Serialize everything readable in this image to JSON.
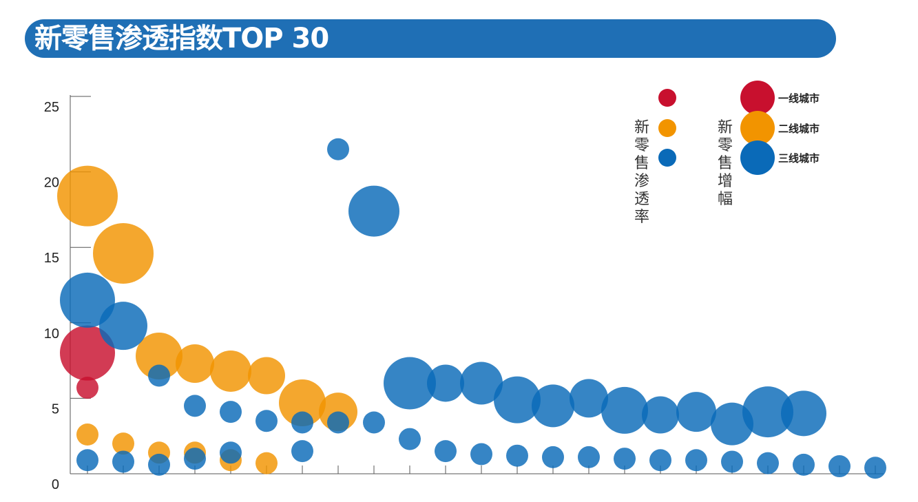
{
  "header": {
    "title": "新零售渗透指数TOP 30"
  },
  "chart_data": {
    "type": "scatter",
    "title": "新零售渗透指数TOP 30",
    "ylim": [
      0,
      25
    ],
    "yticks": [
      0,
      5,
      10,
      15,
      20,
      25
    ],
    "x_count": 23,
    "grid": false,
    "legend": {
      "placement": "top-right",
      "penetration_label": "新零售渗透率",
      "growth_label": "新零售增幅",
      "tiers": [
        {
          "name": "一线城市",
          "color": "#c8102e"
        },
        {
          "name": "二线城市",
          "color": "#f29400"
        },
        {
          "name": "三线城市",
          "color": "#0a6ab8"
        }
      ]
    },
    "series": [
      {
        "name": "一线城市",
        "color": "#c8102e",
        "metric": "新零售增幅",
        "points": [
          {
            "x": 1,
            "y": 8.0,
            "size": 40
          }
        ]
      },
      {
        "name": "一线城市",
        "color": "#c8102e",
        "metric": "新零售渗透率",
        "points": [
          {
            "x": 1,
            "y": 5.7,
            "size": 16
          }
        ]
      },
      {
        "name": "二线城市",
        "color": "#f29400",
        "metric": "新零售增幅",
        "points": [
          {
            "x": 1,
            "y": 18.4,
            "size": 44
          },
          {
            "x": 2,
            "y": 14.6,
            "size": 44
          },
          {
            "x": 3,
            "y": 7.8,
            "size": 34
          },
          {
            "x": 4,
            "y": 7.3,
            "size": 28
          },
          {
            "x": 5,
            "y": 6.8,
            "size": 30
          },
          {
            "x": 6,
            "y": 6.5,
            "size": 27
          },
          {
            "x": 7,
            "y": 4.7,
            "size": 34
          },
          {
            "x": 8,
            "y": 4.1,
            "size": 28
          }
        ]
      },
      {
        "name": "二线城市",
        "color": "#f29400",
        "metric": "新零售渗透率",
        "points": [
          {
            "x": 1,
            "y": 2.6,
            "size": 16
          },
          {
            "x": 2,
            "y": 2.0,
            "size": 16
          },
          {
            "x": 3,
            "y": 1.4,
            "size": 16
          },
          {
            "x": 4,
            "y": 1.4,
            "size": 16
          },
          {
            "x": 5,
            "y": 0.9,
            "size": 16
          },
          {
            "x": 6,
            "y": 0.7,
            "size": 16
          }
        ]
      },
      {
        "name": "三线城市",
        "color": "#0a6ab8",
        "metric": "新零售增幅",
        "points": [
          {
            "x": 1,
            "y": 11.5,
            "size": 40
          },
          {
            "x": 2,
            "y": 9.8,
            "size": 35
          },
          {
            "x": 9,
            "y": 17.4,
            "size": 37
          },
          {
            "x": 10,
            "y": 6.0,
            "size": 38
          },
          {
            "x": 11,
            "y": 6.0,
            "size": 27
          },
          {
            "x": 12,
            "y": 6.0,
            "size": 31
          },
          {
            "x": 13,
            "y": 4.9,
            "size": 34
          },
          {
            "x": 14,
            "y": 4.5,
            "size": 31
          },
          {
            "x": 15,
            "y": 5.0,
            "size": 28
          },
          {
            "x": 16,
            "y": 4.2,
            "size": 34
          },
          {
            "x": 17,
            "y": 3.9,
            "size": 27
          },
          {
            "x": 18,
            "y": 4.1,
            "size": 29
          },
          {
            "x": 19,
            "y": 3.3,
            "size": 31
          },
          {
            "x": 20,
            "y": 4.1,
            "size": 37
          },
          {
            "x": 21,
            "y": 4.0,
            "size": 33
          }
        ]
      },
      {
        "name": "三线城市",
        "color": "#0a6ab8",
        "metric": "新零售渗透率",
        "points": [
          {
            "x": 1,
            "y": 0.9,
            "size": 16
          },
          {
            "x": 2,
            "y": 0.8,
            "size": 16
          },
          {
            "x": 3,
            "y": 6.5,
            "size": 16
          },
          {
            "x": 3,
            "y": 0.6,
            "size": 16
          },
          {
            "x": 4,
            "y": 4.5,
            "size": 16
          },
          {
            "x": 4,
            "y": 1.0,
            "size": 16
          },
          {
            "x": 5,
            "y": 4.1,
            "size": 16
          },
          {
            "x": 5,
            "y": 1.4,
            "size": 16
          },
          {
            "x": 6,
            "y": 3.5,
            "size": 16
          },
          {
            "x": 7,
            "y": 3.4,
            "size": 16
          },
          {
            "x": 7,
            "y": 1.5,
            "size": 16
          },
          {
            "x": 8,
            "y": 3.4,
            "size": 16
          },
          {
            "x": 8,
            "y": 21.5,
            "size": 16
          },
          {
            "x": 9,
            "y": 3.4,
            "size": 16
          },
          {
            "x": 10,
            "y": 2.3,
            "size": 16
          },
          {
            "x": 11,
            "y": 1.5,
            "size": 16
          },
          {
            "x": 12,
            "y": 1.3,
            "size": 16
          },
          {
            "x": 13,
            "y": 1.2,
            "size": 16
          },
          {
            "x": 14,
            "y": 1.1,
            "size": 16
          },
          {
            "x": 15,
            "y": 1.1,
            "size": 16
          },
          {
            "x": 16,
            "y": 1.0,
            "size": 16
          },
          {
            "x": 17,
            "y": 0.9,
            "size": 16
          },
          {
            "x": 18,
            "y": 0.9,
            "size": 16
          },
          {
            "x": 19,
            "y": 0.8,
            "size": 16
          },
          {
            "x": 20,
            "y": 0.7,
            "size": 16
          },
          {
            "x": 21,
            "y": 0.6,
            "size": 16
          },
          {
            "x": 22,
            "y": 0.5,
            "size": 16
          },
          {
            "x": 23,
            "y": 0.4,
            "size": 16
          }
        ]
      }
    ]
  }
}
